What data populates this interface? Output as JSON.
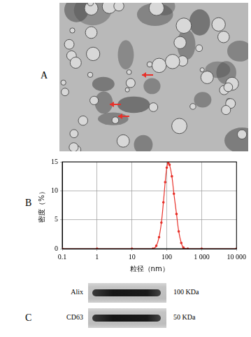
{
  "panel_labels": [
    "A",
    "B",
    "C"
  ],
  "chart_data": {
    "type": "line",
    "x_label": "粒径（nm）",
    "y_label": "密度（%）",
    "x": [
      0.1,
      1,
      10,
      40,
      50,
      60,
      70,
      80,
      90,
      100,
      110,
      120,
      140,
      160,
      190,
      220,
      260,
      300,
      400,
      1000,
      10000
    ],
    "values": [
      0,
      0,
      0,
      0,
      0.5,
      2,
      4.5,
      8,
      11.5,
      14,
      14.8,
      14.5,
      12.5,
      9.5,
      6,
      3,
      1,
      0.2,
      0,
      0,
      0
    ],
    "color": "#e8312a",
    "marker": "circle",
    "log": "x",
    "xlim": [
      0.1,
      10000
    ],
    "xticks": [
      0.1,
      1,
      10,
      100,
      {
        "value": 1000,
        "label": "1 000"
      },
      {
        "value": 10000,
        "label": "10 000"
      }
    ],
    "ylim": [
      0,
      15
    ],
    "yticks": [
      0,
      5,
      10,
      15
    ],
    "grid": true
  },
  "blot": {
    "rows": [
      {
        "name": "Alix",
        "size": "100 KDa"
      },
      {
        "name": "CD63",
        "size": "50 KDa"
      }
    ]
  }
}
